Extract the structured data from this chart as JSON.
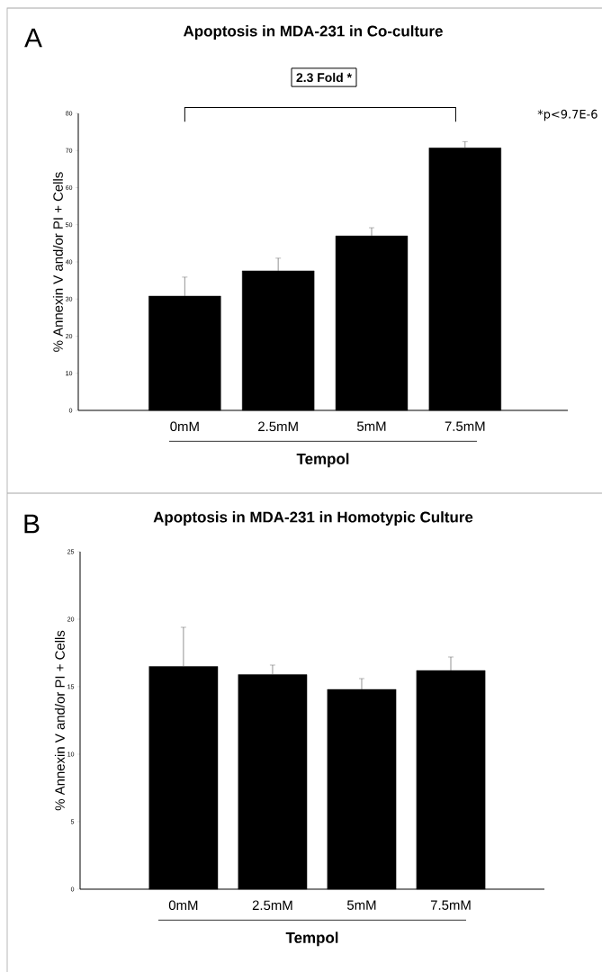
{
  "chart_data": [
    {
      "type": "bar",
      "title": "Apoptosis in MDA-231 in Co-culture",
      "xlabel": "Tempol",
      "ylabel": "% Annexin V and/or PI + Cells",
      "categories": [
        "0mM",
        "2.5mM",
        "5mM",
        "7.5mM"
      ],
      "values": [
        30.8,
        37.6,
        47.0,
        70.7
      ],
      "errors": [
        5.1,
        3.4,
        2.2,
        1.7
      ],
      "color": "#000000",
      "ylim": [
        0,
        80
      ],
      "yticks": [
        0,
        10,
        20,
        30,
        40,
        50,
        60,
        70,
        80
      ],
      "annotations": [
        "A",
        "2.3 Fold *",
        "*p<9.7E-6"
      ]
    },
    {
      "type": "bar",
      "title": "Apoptosis in MDA-231 in Homotypic Culture",
      "xlabel": "Tempol",
      "ylabel": "% Annexin V and/or PI + Cells",
      "categories": [
        "0mM",
        "2.5mM",
        "5mM",
        "7.5mM"
      ],
      "values": [
        16.5,
        15.9,
        14.8,
        16.2
      ],
      "errors": [
        2.9,
        0.7,
        0.8,
        1.0
      ],
      "color": "#000000",
      "ylim": [
        0,
        25
      ],
      "yticks": [
        0,
        5,
        10,
        15,
        20,
        25
      ],
      "annotations": [
        "B"
      ]
    }
  ]
}
